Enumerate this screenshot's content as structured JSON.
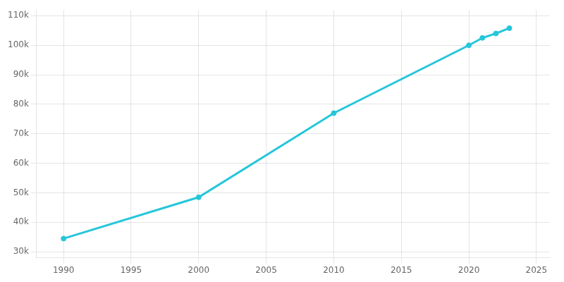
{
  "chart_data": {
    "type": "line",
    "x": [
      1990,
      2000,
      2010,
      2020,
      2021,
      2022,
      2023
    ],
    "values": [
      34500,
      48500,
      77000,
      100000,
      102500,
      104000,
      105800
    ],
    "color": "#26c6da",
    "marker": "circle",
    "xlim": [
      1988,
      2026
    ],
    "ylim": [
      28000,
      112000
    ],
    "xticks": [
      1990,
      1995,
      2000,
      2005,
      2010,
      2015,
      2020,
      2025
    ],
    "yticks": [
      {
        "value": 30000,
        "label": "30k"
      },
      {
        "value": 40000,
        "label": "40k"
      },
      {
        "value": 50000,
        "label": "50k"
      },
      {
        "value": 60000,
        "label": "60k"
      },
      {
        "value": 70000,
        "label": "70k"
      },
      {
        "value": 80000,
        "label": "80k"
      },
      {
        "value": 90000,
        "label": "90k"
      },
      {
        "value": 100000,
        "label": "100k"
      },
      {
        "value": 110000,
        "label": "110k"
      }
    ],
    "grid": true
  }
}
